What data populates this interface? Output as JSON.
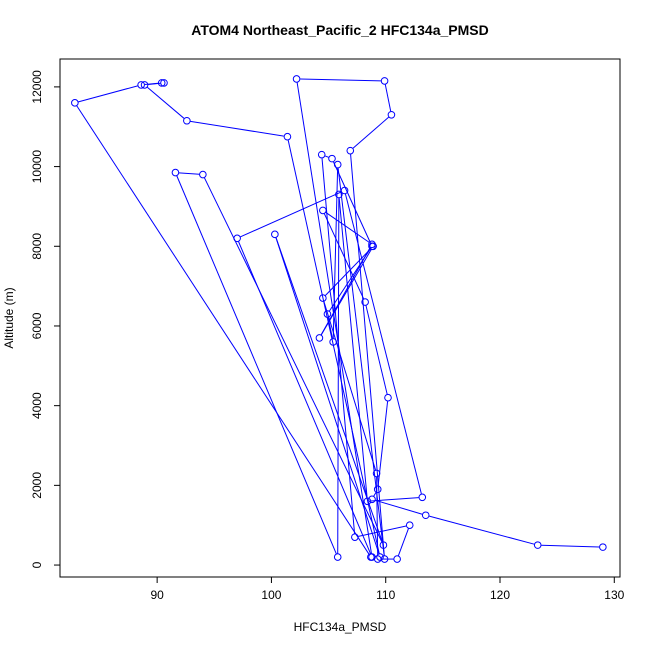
{
  "chart_data": {
    "type": "line",
    "title": "ATOM4 Northeast_Pacific_2 HFC134a_PMSD",
    "xlabel": "HFC134a_PMSD",
    "ylabel": "Altitude (m)",
    "xlim": [
      81.5,
      130.5
    ],
    "ylim": [
      -300,
      12700
    ],
    "x_ticks": [
      90,
      100,
      110,
      120,
      130
    ],
    "y_ticks": [
      0,
      2000,
      4000,
      6000,
      8000,
      10000,
      12000
    ],
    "grid": false,
    "legend": "none",
    "color": "#0000ff",
    "marker": "open-circle",
    "series": [
      {
        "points": [
          [
            129.0,
            450
          ],
          [
            123.3,
            500
          ],
          [
            113.5,
            1250
          ],
          [
            108.8,
            1650
          ],
          [
            109.3,
            1900
          ],
          [
            110.2,
            4200
          ],
          [
            108.2,
            6600
          ],
          [
            104.5,
            8900
          ],
          [
            108.8,
            8050
          ],
          [
            104.2,
            5700
          ],
          [
            108.9,
            8000
          ],
          [
            104.5,
            6700
          ],
          [
            109.2,
            2300
          ],
          [
            109.3,
            150
          ],
          [
            111.0,
            150
          ],
          [
            112.1,
            1000
          ],
          [
            107.3,
            700
          ],
          [
            104.4,
            10300
          ],
          [
            105.3,
            10200
          ],
          [
            108.8,
            8000
          ],
          [
            104.9,
            6300
          ],
          [
            105.4,
            5600
          ],
          [
            105.8,
            10050
          ],
          [
            109.9,
            150
          ],
          [
            106.9,
            10400
          ],
          [
            110.5,
            11300
          ],
          [
            109.9,
            12150
          ],
          [
            102.2,
            12200
          ],
          [
            108.8,
            200
          ],
          [
            97.0,
            8200
          ],
          [
            106.4,
            9400
          ],
          [
            113.2,
            1700
          ],
          [
            108.4,
            1600
          ],
          [
            105.9,
            9300
          ],
          [
            105.8,
            200
          ],
          [
            91.6,
            9850
          ],
          [
            94.0,
            9800
          ],
          [
            109.8,
            500
          ],
          [
            100.3,
            8300
          ],
          [
            109.5,
            200
          ],
          [
            101.4,
            10750
          ],
          [
            92.6,
            11150
          ],
          [
            88.9,
            12050
          ],
          [
            90.6,
            12100
          ],
          [
            90.4,
            12100
          ],
          [
            88.6,
            12050
          ],
          [
            82.8,
            11600
          ],
          [
            108.7,
            200
          ]
        ]
      }
    ]
  }
}
